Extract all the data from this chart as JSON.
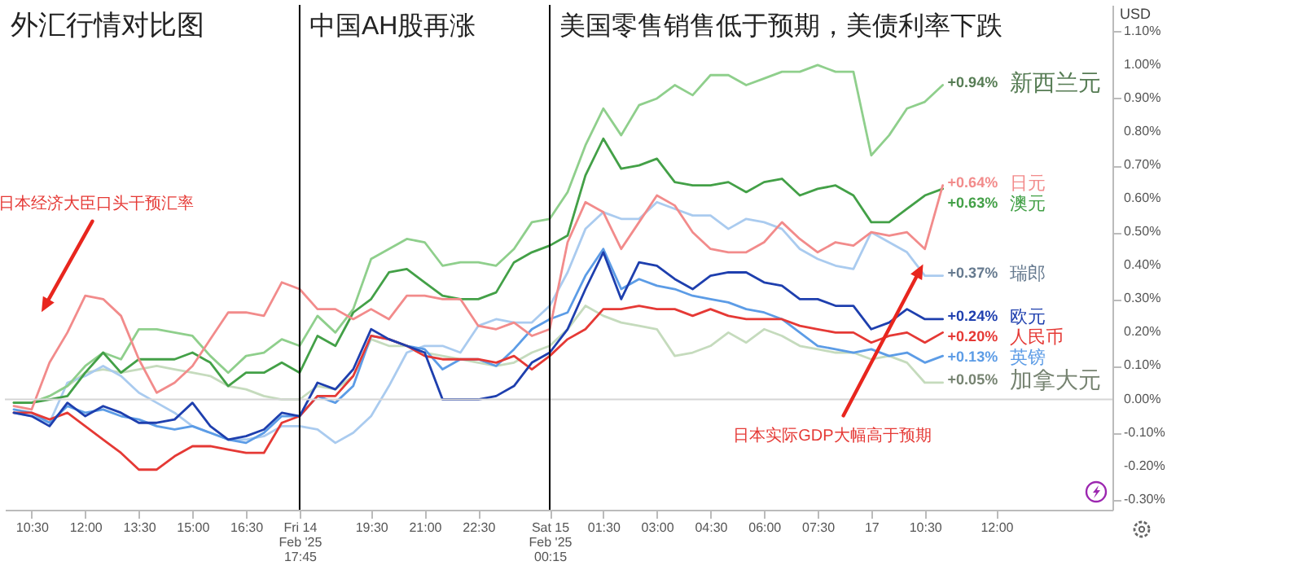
{
  "chart_data": {
    "type": "line",
    "title": "外汇行情对比图",
    "ylabel": "USD",
    "categories": [
      null,
      "10:30",
      null,
      null,
      "12:00",
      null,
      null,
      "13:30",
      null,
      null,
      "15:00",
      null,
      null,
      "16:30",
      null,
      null,
      "Fri 14 Feb '25 17:45",
      null,
      null,
      null,
      "19:30",
      null,
      null,
      "21:00",
      null,
      null,
      "22:30",
      null,
      null,
      null,
      "Sat 15 Feb '25 00:15",
      null,
      null,
      "01:30",
      null,
      null,
      "03:00",
      null,
      null,
      "04:30",
      null,
      null,
      "06:00",
      null,
      null,
      "07:30",
      null,
      null,
      "17",
      null,
      null,
      "10:30",
      null,
      null,
      null,
      "12:00",
      null,
      null,
      null,
      null,
      null,
      null
    ],
    "series": [
      {
        "name": "加拿大元",
        "color": "#c5dbbd",
        "values": [
          -0.01,
          -0.01,
          0.01,
          0.04,
          0.08,
          0.09,
          0.08,
          0.09,
          0.1,
          0.09,
          0.08,
          0.07,
          0.04,
          0.03,
          0.01,
          0.0,
          0.0,
          0.04,
          0.03,
          0.07,
          0.18,
          0.16,
          0.16,
          0.14,
          0.13,
          0.12,
          0.11,
          0.1,
          0.11,
          0.14,
          0.16,
          0.21,
          0.28,
          0.25,
          0.23,
          0.22,
          0.21,
          0.13,
          0.14,
          0.16,
          0.2,
          0.17,
          0.21,
          0.19,
          0.16,
          0.15,
          0.14,
          0.14,
          0.12,
          0.13,
          0.11,
          0.05,
          0.05,
          null,
          null,
          null,
          null,
          null,
          null,
          null,
          null,
          null
        ],
        "value_labels": [
          null,
          null,
          null,
          null,
          null,
          null,
          null,
          null,
          null,
          null,
          null,
          null,
          null,
          null,
          null,
          null,
          null,
          null,
          null,
          null,
          null,
          null,
          null,
          null,
          null,
          null,
          null,
          null,
          null,
          null,
          null,
          null,
          null,
          null,
          null,
          null,
          null,
          null,
          null,
          null,
          null,
          null,
          null,
          null,
          null,
          null,
          null,
          null,
          null,
          null,
          null,
          null,
          "+0.05%",
          null,
          null,
          null,
          null,
          null,
          null,
          null,
          null,
          null
        ]
      },
      {
        "name": "瑞郎",
        "color": "#aacbef",
        "values": [
          -0.04,
          -0.05,
          -0.07,
          0.05,
          0.07,
          0.1,
          0.07,
          0.02,
          -0.01,
          -0.04,
          -0.08,
          -0.1,
          -0.12,
          -0.12,
          -0.11,
          -0.08,
          -0.08,
          -0.09,
          -0.13,
          -0.1,
          -0.05,
          0.04,
          0.14,
          0.16,
          0.16,
          0.14,
          0.22,
          0.24,
          0.23,
          0.23,
          0.28,
          0.38,
          0.51,
          0.56,
          0.54,
          0.54,
          0.59,
          0.57,
          0.55,
          0.55,
          0.51,
          0.54,
          0.53,
          0.51,
          0.45,
          0.42,
          0.4,
          0.39,
          0.5,
          0.47,
          0.44,
          0.37,
          0.37,
          null,
          null,
          null,
          null,
          null,
          null,
          null,
          null,
          null
        ],
        "value_labels": [
          null,
          null,
          null,
          null,
          null,
          null,
          null,
          null,
          null,
          null,
          null,
          null,
          null,
          null,
          null,
          null,
          null,
          null,
          null,
          null,
          null,
          null,
          null,
          null,
          null,
          null,
          null,
          null,
          null,
          null,
          null,
          null,
          null,
          null,
          null,
          null,
          null,
          null,
          null,
          null,
          null,
          null,
          null,
          null,
          null,
          null,
          null,
          null,
          null,
          null,
          null,
          null,
          "+0.37%",
          null,
          null,
          null,
          null,
          null,
          null,
          null,
          null,
          null
        ]
      },
      {
        "name": "新西兰元",
        "color": "#8fcf8c",
        "values": [
          -0.01,
          -0.01,
          0.01,
          0.04,
          0.1,
          0.14,
          0.12,
          0.21,
          0.21,
          0.2,
          0.19,
          0.13,
          0.08,
          0.13,
          0.14,
          0.18,
          0.16,
          0.25,
          0.2,
          0.27,
          0.42,
          0.45,
          0.48,
          0.47,
          0.4,
          0.41,
          0.41,
          0.4,
          0.45,
          0.53,
          0.54,
          0.62,
          0.76,
          0.87,
          0.79,
          0.88,
          0.9,
          0.94,
          0.91,
          0.97,
          0.97,
          0.94,
          0.96,
          0.98,
          0.98,
          1.0,
          0.98,
          0.98,
          0.73,
          0.79,
          0.87,
          0.89,
          0.94,
          null,
          null,
          null,
          null,
          null,
          null,
          null,
          null,
          null
        ],
        "value_labels": [
          null,
          null,
          null,
          null,
          null,
          null,
          null,
          null,
          null,
          null,
          null,
          null,
          null,
          null,
          null,
          null,
          null,
          null,
          null,
          null,
          null,
          null,
          null,
          null,
          null,
          null,
          null,
          null,
          null,
          null,
          null,
          null,
          null,
          null,
          null,
          null,
          null,
          null,
          null,
          null,
          null,
          null,
          null,
          null,
          null,
          null,
          null,
          null,
          null,
          null,
          null,
          null,
          "+0.94%",
          null,
          null,
          null,
          null,
          null,
          null,
          null,
          null,
          null
        ]
      },
      {
        "name": "澳元",
        "color": "#43a047",
        "values": [
          -0.01,
          -0.01,
          0.0,
          0.01,
          0.08,
          0.14,
          0.08,
          0.12,
          0.12,
          0.12,
          0.14,
          0.11,
          0.04,
          0.08,
          0.08,
          0.11,
          0.08,
          0.19,
          0.16,
          0.26,
          0.3,
          0.38,
          0.39,
          0.35,
          0.31,
          0.3,
          0.3,
          0.32,
          0.41,
          0.44,
          0.46,
          0.49,
          0.67,
          0.78,
          0.69,
          0.7,
          0.72,
          0.65,
          0.64,
          0.64,
          0.65,
          0.62,
          0.65,
          0.66,
          0.61,
          0.63,
          0.64,
          0.61,
          0.53,
          0.53,
          0.57,
          0.61,
          0.63,
          null,
          null,
          null,
          null,
          null,
          null,
          null,
          null,
          null
        ],
        "value_labels": [
          null,
          null,
          null,
          null,
          null,
          null,
          null,
          null,
          null,
          null,
          null,
          null,
          null,
          null,
          null,
          null,
          null,
          null,
          null,
          null,
          null,
          null,
          null,
          null,
          null,
          null,
          null,
          null,
          null,
          null,
          null,
          null,
          null,
          null,
          null,
          null,
          null,
          null,
          null,
          null,
          null,
          null,
          null,
          null,
          null,
          null,
          null,
          null,
          null,
          null,
          null,
          null,
          "+0.63%",
          null,
          null,
          null,
          null,
          null,
          null,
          null,
          null,
          null
        ]
      },
      {
        "name": "英镑",
        "color": "#5c9ce6",
        "values": [
          -0.03,
          -0.04,
          -0.07,
          -0.02,
          -0.04,
          -0.03,
          -0.05,
          -0.06,
          -0.08,
          -0.09,
          -0.08,
          -0.1,
          -0.12,
          -0.13,
          -0.1,
          -0.05,
          -0.05,
          0.01,
          -0.01,
          0.04,
          0.19,
          0.18,
          0.16,
          0.15,
          0.09,
          0.12,
          0.12,
          0.1,
          0.15,
          0.21,
          0.24,
          0.26,
          0.37,
          0.45,
          0.33,
          0.36,
          0.34,
          0.33,
          0.31,
          0.3,
          0.29,
          0.27,
          0.26,
          0.24,
          0.2,
          0.16,
          0.15,
          0.14,
          0.15,
          0.13,
          0.14,
          0.11,
          0.13,
          null,
          null,
          null,
          null,
          null,
          null,
          null,
          null,
          null
        ],
        "value_labels": [
          null,
          null,
          null,
          null,
          null,
          null,
          null,
          null,
          null,
          null,
          null,
          null,
          null,
          null,
          null,
          null,
          null,
          null,
          null,
          null,
          null,
          null,
          null,
          null,
          null,
          null,
          null,
          null,
          null,
          null,
          null,
          null,
          null,
          null,
          null,
          null,
          null,
          null,
          null,
          null,
          null,
          null,
          null,
          null,
          null,
          null,
          null,
          null,
          null,
          null,
          null,
          null,
          "+0.13%",
          null,
          null,
          null,
          null,
          null,
          null,
          null,
          null,
          null
        ]
      },
      {
        "name": "日元",
        "color": "#f28b8b",
        "values": [
          -0.02,
          -0.03,
          0.11,
          0.2,
          0.31,
          0.3,
          0.25,
          0.12,
          0.02,
          0.05,
          0.1,
          0.18,
          0.26,
          0.26,
          0.25,
          0.35,
          0.33,
          0.27,
          0.27,
          0.24,
          0.27,
          0.24,
          0.31,
          0.31,
          0.3,
          0.3,
          0.22,
          0.21,
          0.23,
          0.19,
          0.21,
          0.47,
          0.59,
          0.56,
          0.45,
          0.53,
          0.61,
          0.58,
          0.5,
          0.45,
          0.44,
          0.44,
          0.47,
          0.53,
          0.48,
          0.44,
          0.47,
          0.46,
          0.5,
          0.49,
          0.5,
          0.45,
          0.64,
          null,
          null,
          null,
          null,
          null,
          null,
          null,
          null,
          null
        ],
        "value_labels": [
          null,
          null,
          null,
          null,
          null,
          null,
          null,
          null,
          null,
          null,
          null,
          null,
          null,
          null,
          null,
          null,
          null,
          null,
          null,
          null,
          null,
          null,
          null,
          null,
          null,
          null,
          null,
          null,
          null,
          null,
          null,
          null,
          null,
          null,
          null,
          null,
          null,
          null,
          null,
          null,
          null,
          null,
          null,
          null,
          null,
          null,
          null,
          null,
          null,
          null,
          null,
          null,
          "+0.64%",
          null,
          null,
          null,
          null,
          null,
          null,
          null,
          null,
          null
        ]
      },
      {
        "name": "人民币",
        "color": "#e53935",
        "values": [
          -0.04,
          -0.04,
          -0.06,
          -0.04,
          -0.08,
          -0.12,
          -0.16,
          -0.21,
          -0.21,
          -0.17,
          -0.14,
          -0.14,
          -0.15,
          -0.16,
          -0.16,
          -0.07,
          -0.05,
          0.01,
          0.01,
          0.07,
          0.19,
          0.18,
          0.16,
          0.13,
          0.12,
          0.12,
          0.12,
          0.11,
          0.13,
          0.09,
          0.13,
          0.18,
          0.21,
          0.27,
          0.27,
          0.28,
          0.27,
          0.27,
          0.25,
          0.27,
          0.25,
          0.24,
          0.24,
          0.24,
          0.22,
          0.21,
          0.2,
          0.2,
          0.17,
          0.19,
          0.2,
          0.17,
          0.2,
          null,
          null,
          null,
          null,
          null,
          null,
          null,
          null,
          null
        ],
        "value_labels": [
          null,
          null,
          null,
          null,
          null,
          null,
          null,
          null,
          null,
          null,
          null,
          null,
          null,
          null,
          null,
          null,
          null,
          null,
          null,
          null,
          null,
          null,
          null,
          null,
          null,
          null,
          null,
          null,
          null,
          null,
          null,
          null,
          null,
          null,
          null,
          null,
          null,
          null,
          null,
          null,
          null,
          null,
          null,
          null,
          null,
          null,
          null,
          null,
          null,
          null,
          null,
          null,
          "+0.20%",
          null,
          null,
          null,
          null,
          null,
          null,
          null,
          null,
          null
        ]
      },
      {
        "name": "欧元",
        "color": "#1e3fae",
        "values": [
          -0.04,
          -0.05,
          -0.08,
          -0.01,
          -0.05,
          -0.02,
          -0.04,
          -0.07,
          -0.07,
          -0.06,
          -0.01,
          -0.08,
          -0.12,
          -0.11,
          -0.09,
          -0.04,
          -0.05,
          0.05,
          0.03,
          0.09,
          0.21,
          0.18,
          0.16,
          0.14,
          0.0,
          0.0,
          0.0,
          0.01,
          0.04,
          0.11,
          0.14,
          0.21,
          0.33,
          0.44,
          0.3,
          0.41,
          0.4,
          0.36,
          0.33,
          0.37,
          0.38,
          0.38,
          0.35,
          0.34,
          0.3,
          0.3,
          0.28,
          0.28,
          0.21,
          0.23,
          0.27,
          0.24,
          0.24,
          null,
          null,
          null,
          null,
          null,
          null,
          null,
          null,
          null
        ],
        "value_labels": [
          null,
          null,
          null,
          null,
          null,
          null,
          null,
          null,
          null,
          null,
          null,
          null,
          null,
          null,
          null,
          null,
          null,
          null,
          null,
          null,
          null,
          null,
          null,
          null,
          null,
          null,
          null,
          null,
          null,
          null,
          null,
          null,
          null,
          null,
          null,
          null,
          null,
          null,
          null,
          null,
          null,
          null,
          null,
          null,
          null,
          null,
          null,
          null,
          null,
          null,
          null,
          null,
          "+0.24%",
          null,
          null,
          null,
          null,
          null,
          null,
          null,
          null,
          null
        ]
      }
    ],
    "ylim": [
      -0.33,
      1.18
    ],
    "yticks": [
      {
        "value": -0.3,
        "label": "-0.30%"
      },
      {
        "value": -0.2,
        "label": "-0.20%"
      },
      {
        "value": -0.1,
        "label": "-0.10%"
      },
      {
        "value": 0,
        "label": "0.00%"
      },
      {
        "value": 0.1,
        "label": "0.10%"
      },
      {
        "value": 0.2,
        "label": "0.20%"
      },
      {
        "value": 0.3,
        "label": "0.30%"
      },
      {
        "value": 0.4,
        "label": "0.40%"
      },
      {
        "value": 0.5,
        "label": "0.50%"
      },
      {
        "value": 0.6,
        "label": "0.60%"
      },
      {
        "value": 0.7,
        "label": "0.70%"
      },
      {
        "value": 0.8,
        "label": "0.80%"
      },
      {
        "value": 0.9,
        "label": "0.90%"
      },
      {
        "value": 1.0,
        "label": "1.00%"
      },
      {
        "value": 1.1,
        "label": "1.10%"
      }
    ],
    "ref_lines": [
      {
        "axis": "y",
        "value": 0,
        "color": "#d6d6d6"
      },
      {
        "axis": "x",
        "value": "Fri 14 Feb '25 17:45",
        "label": "中国AH股再涨",
        "color": "#000000"
      },
      {
        "axis": "x",
        "value": "Sat 15 Feb '25 00:15",
        "label": "美国零售销售低于预期，美债利率下跌",
        "color": "#000000"
      }
    ],
    "annotations": [
      "日本经济大臣口头干预汇率",
      "日本实际GDP大幅高于预期"
    ]
  }
}
